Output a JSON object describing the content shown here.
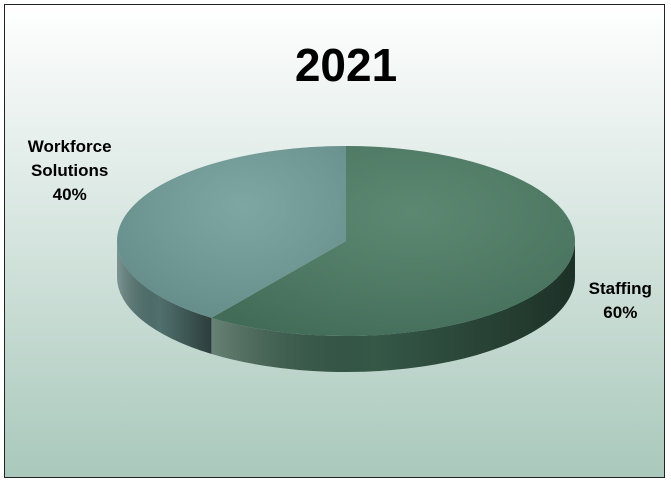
{
  "chart_data": {
    "type": "pie",
    "title": "2021",
    "slices": [
      {
        "label": [
          "Staffing",
          "60%"
        ],
        "value": 60,
        "color": "#4a7a62"
      },
      {
        "label": [
          "Workforce",
          "Solutions",
          "40%"
        ],
        "value": 40,
        "color": "#6f9c98"
      }
    ],
    "legend": "none",
    "style": "3d-tilted",
    "background_gradient": [
      "#ffffff",
      "#a9c8bc"
    ]
  }
}
